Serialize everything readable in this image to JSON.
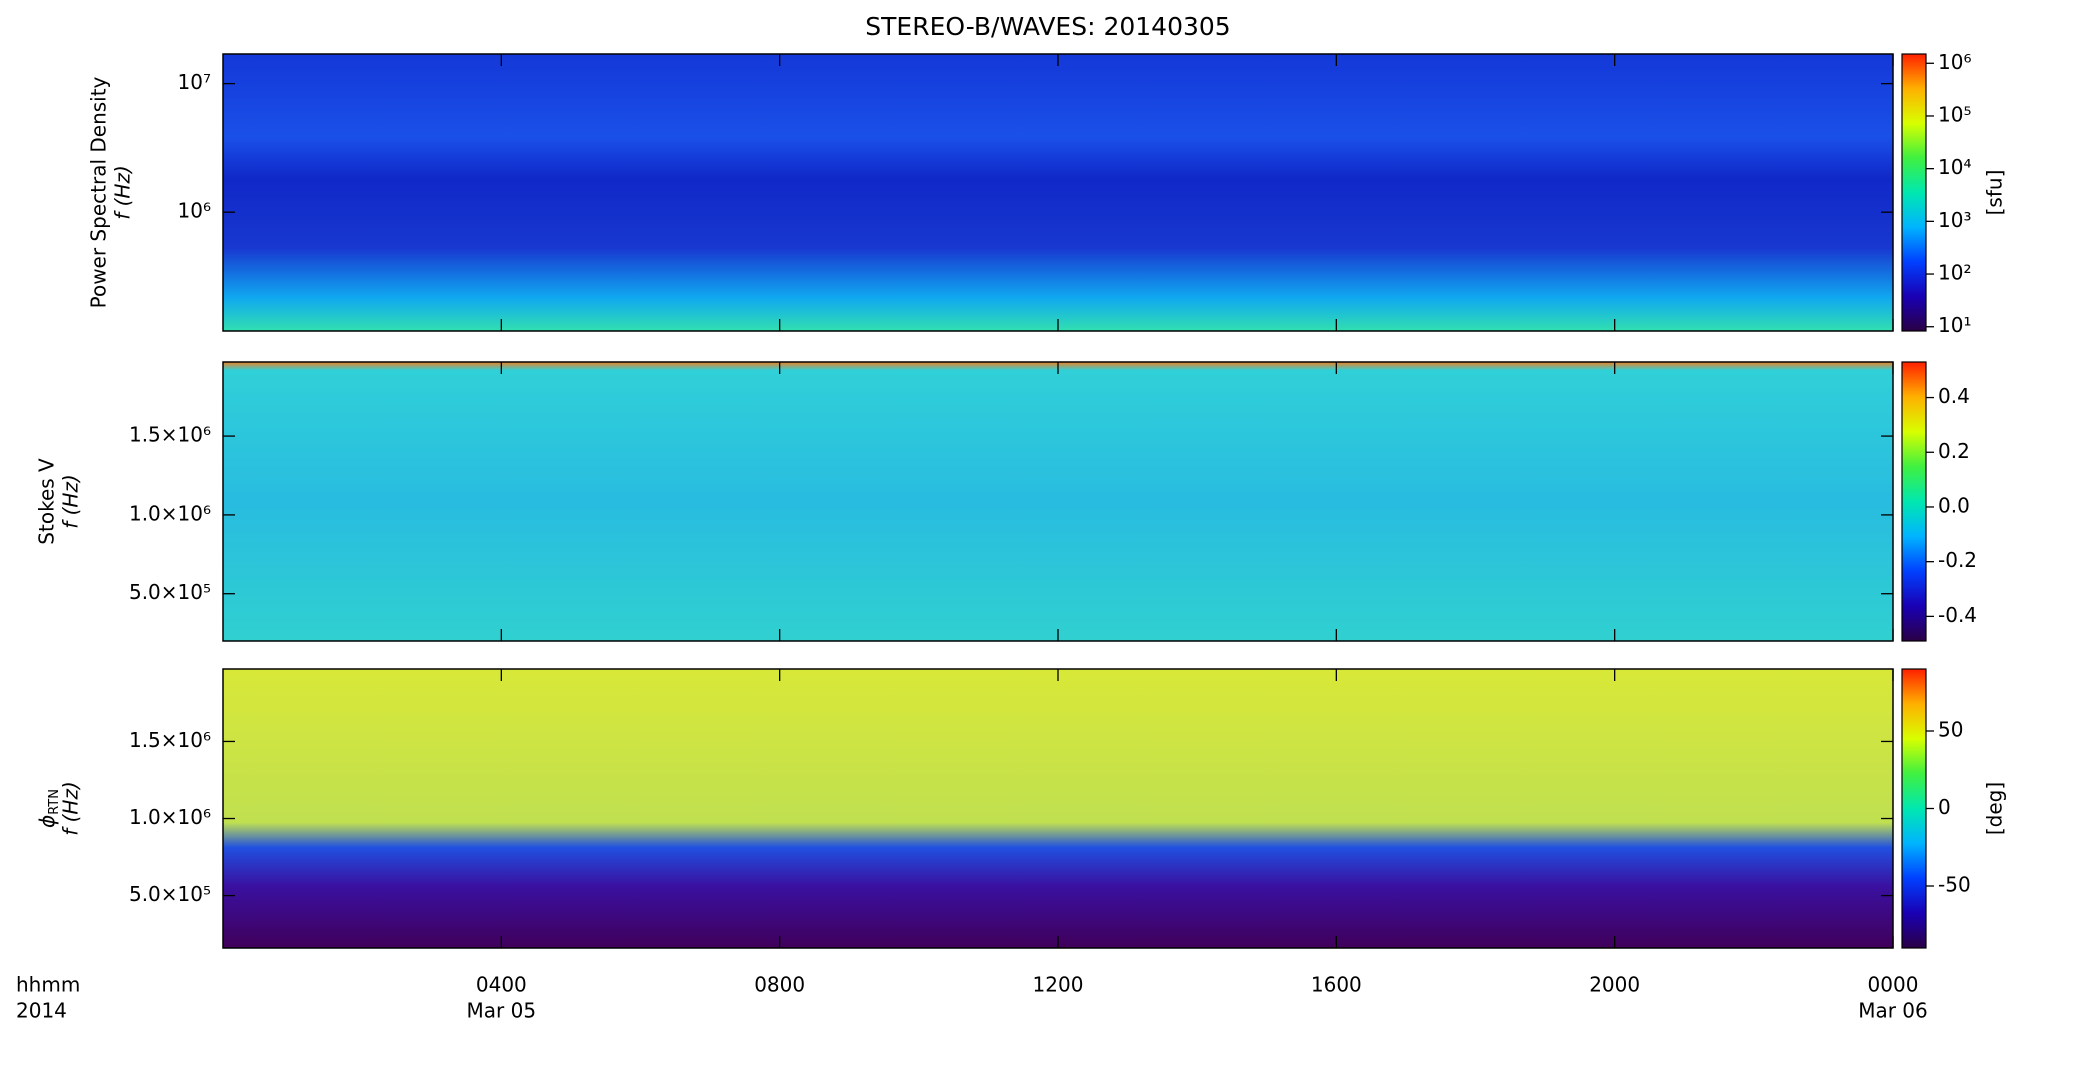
{
  "title": "STEREO-B/WAVES: 20140305",
  "colormap": [
    "#2a0046",
    "#1a00b4",
    "#0040ff",
    "#00b4ff",
    "#00e8b0",
    "#40f040",
    "#d8ff00",
    "#ffb000",
    "#ff2000"
  ],
  "chart_data": [
    {
      "type": "heatmap",
      "ylabel": "Power Spectral Density",
      "ylabel2": "f (Hz)",
      "ylog": true,
      "ylim": [
        119000,
        17000000
      ],
      "yticks": [
        {
          "value": 1000000,
          "label": "10⁶"
        },
        {
          "value": 10000000,
          "label": "10⁷"
        }
      ],
      "colorbar": {
        "log": true,
        "lim": [
          8.3,
          1500000
        ],
        "label": "[sfu]",
        "ticks": [
          {
            "value": 10,
            "label": "10¹"
          },
          {
            "value": 100,
            "label": "10²"
          },
          {
            "value": 1000,
            "label": "10³"
          },
          {
            "value": 10000,
            "label": "10⁴"
          },
          {
            "value": 100000,
            "label": "10⁵"
          },
          {
            "value": 1000000,
            "label": "10⁶"
          }
        ]
      }
    },
    {
      "type": "heatmap",
      "ylabel": "Stokes V",
      "ylabel2": "f (Hz)",
      "ylog": false,
      "ylim": [
        200000,
        1970000
      ],
      "yticks": [
        {
          "value": 500000,
          "label": "5.0×10⁵"
        },
        {
          "value": 1000000,
          "label": "1.0×10⁶"
        },
        {
          "value": 1500000,
          "label": "1.5×10⁶"
        }
      ],
      "colorbar": {
        "log": false,
        "lim": [
          -0.49,
          0.53
        ],
        "ticks": [
          -0.4,
          -0.2,
          {
            "value": 0,
            "label": "0.0"
          },
          0.2,
          0.4
        ]
      }
    },
    {
      "type": "heatmap",
      "ylabel_symbol": "ϕ",
      "ylabel_sub": "RTN",
      "ylabel2": "f (Hz)",
      "ylog": false,
      "ylim": [
        160000,
        1970000
      ],
      "yticks": [
        {
          "value": 500000,
          "label": "5.0×10⁵"
        },
        {
          "value": 1000000,
          "label": "1.0×10⁶"
        },
        {
          "value": 1500000,
          "label": "1.5×10⁶"
        }
      ],
      "colorbar": {
        "log": false,
        "lim": [
          -90,
          90
        ],
        "label": "[deg]",
        "ticks": [
          -50,
          0,
          50
        ]
      },
      "xlim": [
        0,
        24
      ],
      "xticks": [
        {
          "value": 4,
          "label": "0400"
        },
        {
          "value": 8,
          "label": "0800"
        },
        {
          "value": 12,
          "label": "1200"
        },
        {
          "value": 16,
          "label": "1600"
        },
        {
          "value": 20,
          "label": "2000"
        },
        {
          "value": 24,
          "label": "0000"
        }
      ],
      "xdates": [
        {
          "value": 4,
          "label": "Mar 05"
        },
        {
          "value": 24,
          "label": "Mar 06"
        }
      ],
      "xunit": "hhmm",
      "xyear": "2014"
    }
  ]
}
